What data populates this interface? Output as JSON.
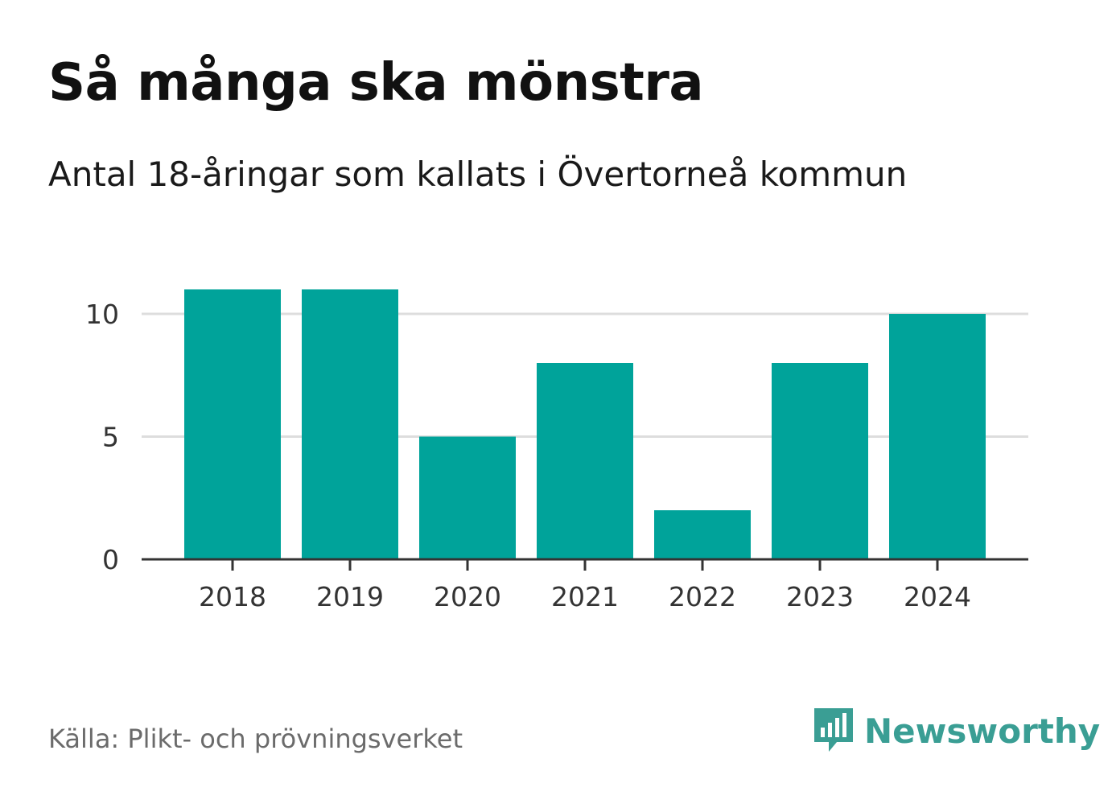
{
  "title": "Så många ska mönstra",
  "subtitle": "Antal 18-åringar som kallats i Övertorneå kommun",
  "source": "Källa: Plikt- och prövningsverket",
  "brand": {
    "name": "Newsworthy",
    "icon": "newsworthy-logo-icon"
  },
  "colors": {
    "bar": "#00A39A",
    "grid": "#dddddd",
    "axis": "#333333",
    "brand": "#3a9e94"
  },
  "chart_data": {
    "type": "bar",
    "categories": [
      "2018",
      "2019",
      "2020",
      "2021",
      "2022",
      "2023",
      "2024"
    ],
    "values": [
      11,
      11,
      5,
      8,
      2,
      8,
      10
    ],
    "yticks": [
      0,
      5,
      10
    ],
    "ylim": [
      0,
      11
    ],
    "grid": true,
    "xlabel": "",
    "ylabel": ""
  }
}
